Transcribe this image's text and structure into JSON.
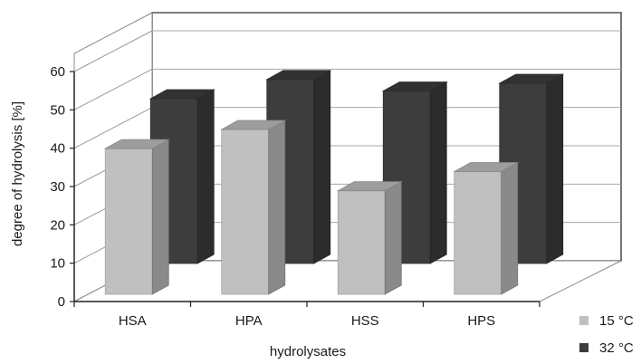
{
  "chart_data": {
    "type": "bar",
    "subtype": "3d-clustered-depth",
    "categories": [
      "HSA",
      "HPA",
      "HSS",
      "HPS"
    ],
    "series": [
      {
        "name": "15 °C",
        "values": [
          38,
          43,
          27,
          32
        ],
        "color": "#c0c0c0"
      },
      {
        "name": "32 °C",
        "values": [
          43,
          48,
          45,
          47
        ],
        "color": "#3d3d3d"
      }
    ],
    "xlabel": "hydrolysates",
    "ylabel": "degree of hydrolysis [%]",
    "ylim": [
      0,
      60
    ],
    "yticks": [
      "0",
      "10",
      "20",
      "30",
      "40",
      "50",
      "60"
    ],
    "grid": true,
    "legend_position": "bottom-right"
  }
}
